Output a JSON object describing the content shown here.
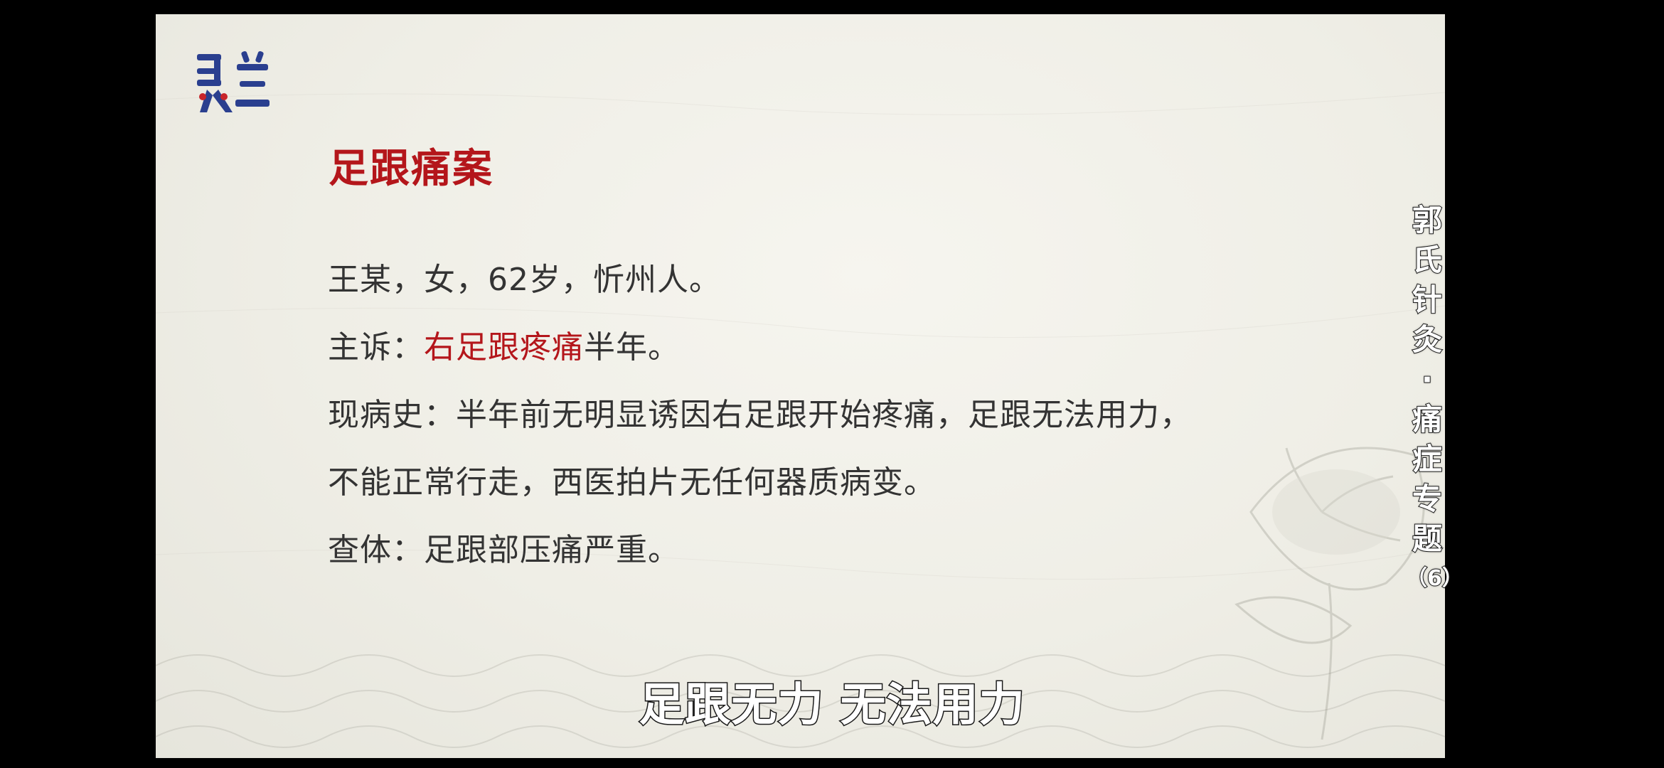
{
  "slide": {
    "logo_icon": "lingzhi-logo-icon",
    "title": "足跟痛案",
    "patient_info": "王某，女，62岁，忻州人。",
    "complaint": {
      "label": "主诉：",
      "highlight": "右足跟疼痛",
      "rest": "半年。"
    },
    "history_line1": "现病史：半年前无明显诱因右足跟开始疼痛，足跟无法用力，",
    "history_line2": "不能正常行走，西医拍片无任何器质病变。",
    "exam": "查体：足跟部压痛严重。",
    "series_title_chars": [
      "郭",
      "氏",
      "针",
      "灸",
      "·",
      "痛",
      "症",
      "专",
      "题",
      "（6）"
    ]
  },
  "subtitle": "足跟无力 无法用力",
  "colors": {
    "accent_red": "#b4161b",
    "body_text": "#333333",
    "logo_blue": "#2a3f8f",
    "logo_red": "#c8242a",
    "background": "#000000",
    "slide_bg": "#efeee6"
  }
}
